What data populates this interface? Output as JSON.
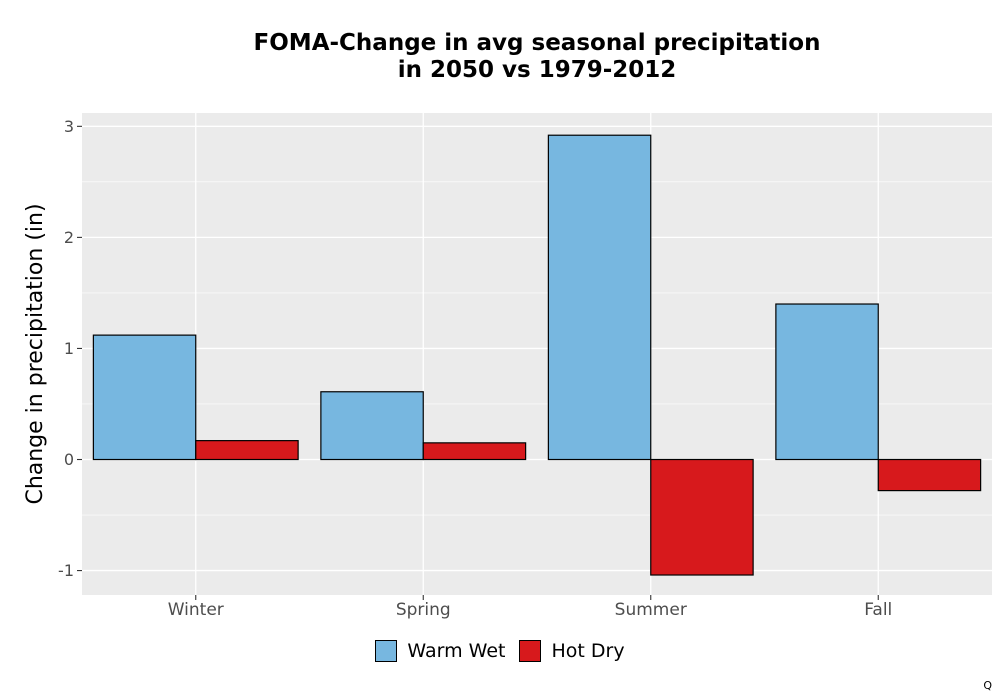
{
  "chart_data": {
    "type": "bar",
    "title_lines": [
      "FOMA-Change in avg seasonal precipitation",
      "in 2050 vs 1979-2012"
    ],
    "xlabel": "",
    "ylabel": "Change in precipitation (in)",
    "categories": [
      "Winter",
      "Spring",
      "Summer",
      "Fall"
    ],
    "series": [
      {
        "name": "Warm Wet",
        "values": [
          1.12,
          0.61,
          2.92,
          1.4
        ],
        "color": "#77b7e0"
      },
      {
        "name": "Hot Dry",
        "values": [
          0.17,
          0.15,
          -1.04,
          -0.28
        ],
        "color": "#d7191c"
      }
    ],
    "ylim": [
      -1.22,
      3.12
    ],
    "yticks": [
      -1,
      0,
      1,
      2,
      3
    ],
    "ytick_labels": [
      "-1",
      "0",
      "1",
      "2",
      "3"
    ],
    "grid": true,
    "panel_color": "#ebebeb",
    "legend_position": "bottom"
  },
  "corner_mark": "Q"
}
